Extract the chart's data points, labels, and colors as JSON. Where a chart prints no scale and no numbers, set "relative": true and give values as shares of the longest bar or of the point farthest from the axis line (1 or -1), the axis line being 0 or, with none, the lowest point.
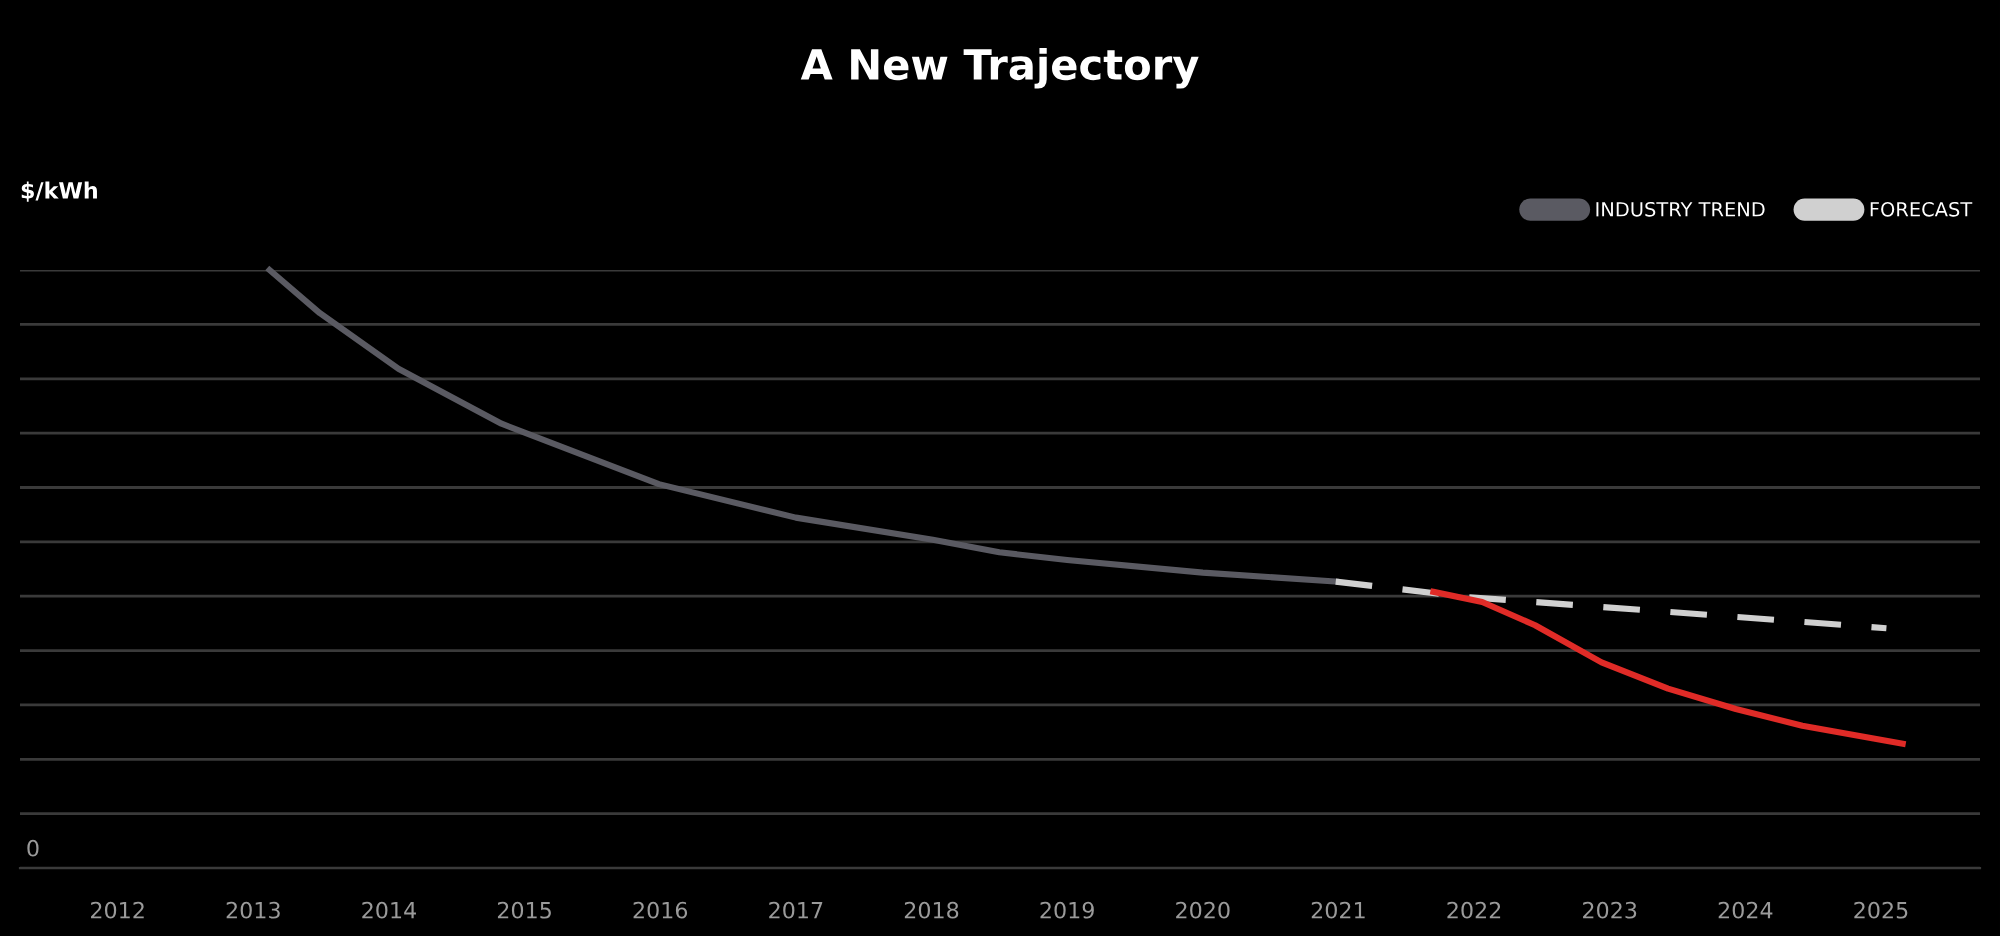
{
  "chart_data": {
    "type": "line",
    "title": "A New Trajectory",
    "ylabel": "$/kWh",
    "relative": true,
    "annotations": [
      "0"
    ],
    "xlim": [
      2011.28,
      2025.73
    ],
    "xticks": [
      2012,
      2013,
      2014,
      2015,
      2016,
      2017,
      2018,
      2019,
      2020,
      2021,
      2022,
      2023,
      2024,
      2025
    ],
    "grid": "y",
    "legend": "top right",
    "series": [
      {
        "name": "INDUSTRY TREND",
        "color": "#5a5a62",
        "line_style": "solid",
        "x": [
          2013.12,
          2013.49,
          2014.07,
          2014.83,
          2015.99,
          2017.0,
          2018.01,
          2018.5,
          2019.0,
          2020.0,
          2020.98
        ],
        "values": [
          1.0,
          0.928,
          0.835,
          0.743,
          0.642,
          0.586,
          0.549,
          0.528,
          0.515,
          0.494,
          0.479
        ]
      },
      {
        "name": "FORECAST",
        "color": "#d0d0d0",
        "line_style": "dashed",
        "x": [
          2020.98,
          2021.96,
          2023.93,
          2025.04
        ],
        "values": [
          0.479,
          0.453,
          0.42,
          0.401
        ]
      },
      {
        "color": "#e02b27",
        "line_style": "solid",
        "x": [
          2021.7,
          2022.06,
          2022.45,
          2022.94,
          2023.43,
          2023.93,
          2024.42,
          2025.16
        ],
        "values": [
          0.462,
          0.445,
          0.406,
          0.344,
          0.3,
          0.266,
          0.238,
          0.208
        ]
      }
    ]
  }
}
